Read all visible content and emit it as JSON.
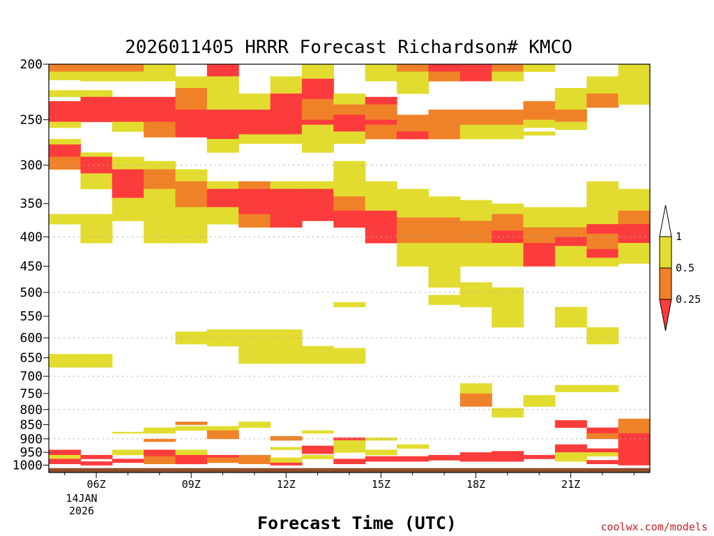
{
  "chart_data": {
    "type": "heatmap",
    "title": "2026011405 HRRR Forecast Richardson# KMCO",
    "xlabel": "Forecast Time (UTC)",
    "ylabel": "",
    "credit": "coolwx.com/models",
    "x_range_hours": [
      4.5,
      23.5
    ],
    "y_scale": "log",
    "y_range_hPa": [
      1030,
      200
    ],
    "y_ticks": [
      200,
      250,
      300,
      350,
      400,
      450,
      500,
      550,
      600,
      650,
      700,
      750,
      800,
      850,
      900,
      950,
      1000
    ],
    "y_gridlines": [
      300,
      400,
      500,
      600,
      700,
      800,
      900
    ],
    "x_ticks": [
      {
        "hour": 6,
        "label": "06Z"
      },
      {
        "hour": 9,
        "label": "09Z"
      },
      {
        "hour": 12,
        "label": "12Z"
      },
      {
        "hour": 15,
        "label": "15Z"
      },
      {
        "hour": 18,
        "label": "18Z"
      },
      {
        "hour": 21,
        "label": "21Z"
      }
    ],
    "date_label": [
      "14JAN",
      "2026"
    ],
    "legend": {
      "placement": "right",
      "labels": [
        "1",
        "0.5",
        "0.25"
      ],
      "bins": [
        {
          "name": "0.5-1",
          "color": "#e3dc30"
        },
        {
          "name": "0.25-0.5",
          "color": "#ef8228"
        },
        {
          "name": "<0.25",
          "color": "#fc3c3c"
        }
      ]
    },
    "colors": {
      "yellow": "#e3dc30",
      "orange": "#ef8228",
      "red": "#fc3c3c",
      "ground": "#8f4f2a",
      "grid": "#aaaaaa"
    },
    "ground_top_hPa": 1012,
    "cells": [
      [
        5,
        200,
        206,
        "O"
      ],
      [
        5,
        206,
        213,
        "Y"
      ],
      [
        5,
        222,
        228,
        "Y"
      ],
      [
        5,
        232,
        252,
        "R"
      ],
      [
        5,
        252,
        258,
        "Y"
      ],
      [
        5,
        270,
        276,
        "Y"
      ],
      [
        5,
        276,
        290,
        "R"
      ],
      [
        5,
        290,
        305,
        "O"
      ],
      [
        5,
        365,
        380,
        "Y"
      ],
      [
        5,
        640,
        675,
        "Y"
      ],
      [
        5,
        940,
        960,
        "R"
      ],
      [
        5,
        960,
        975,
        "Y"
      ],
      [
        5,
        975,
        995,
        "R"
      ],
      [
        6,
        200,
        206,
        "O"
      ],
      [
        6,
        206,
        214,
        "Y"
      ],
      [
        6,
        222,
        228,
        "Y"
      ],
      [
        6,
        228,
        252,
        "R"
      ],
      [
        6,
        285,
        290,
        "Y"
      ],
      [
        6,
        290,
        310,
        "R"
      ],
      [
        6,
        310,
        330,
        "Y"
      ],
      [
        6,
        365,
        410,
        "Y"
      ],
      [
        6,
        640,
        675,
        "Y"
      ],
      [
        6,
        960,
        975,
        "R"
      ],
      [
        6,
        985,
        1000,
        "R"
      ],
      [
        7,
        200,
        206,
        "O"
      ],
      [
        7,
        206,
        214,
        "Y"
      ],
      [
        7,
        228,
        252,
        "R"
      ],
      [
        7,
        252,
        262,
        "Y"
      ],
      [
        7,
        290,
        305,
        "Y"
      ],
      [
        7,
        305,
        342,
        "R"
      ],
      [
        7,
        342,
        375,
        "Y"
      ],
      [
        7,
        875,
        880,
        "Y"
      ],
      [
        7,
        940,
        960,
        "Y"
      ],
      [
        7,
        975,
        990,
        "R"
      ],
      [
        8,
        200,
        214,
        "Y"
      ],
      [
        8,
        228,
        252,
        "R"
      ],
      [
        8,
        252,
        268,
        "O"
      ],
      [
        8,
        295,
        305,
        "Y"
      ],
      [
        8,
        305,
        330,
        "O"
      ],
      [
        8,
        330,
        410,
        "Y"
      ],
      [
        8,
        860,
        880,
        "Y"
      ],
      [
        8,
        900,
        910,
        "O"
      ],
      [
        8,
        940,
        965,
        "R"
      ],
      [
        8,
        965,
        995,
        "O"
      ],
      [
        9,
        210,
        220,
        "Y"
      ],
      [
        9,
        220,
        240,
        "O"
      ],
      [
        9,
        240,
        268,
        "R"
      ],
      [
        9,
        305,
        320,
        "Y"
      ],
      [
        9,
        320,
        355,
        "O"
      ],
      [
        9,
        355,
        410,
        "Y"
      ],
      [
        9,
        585,
        615,
        "Y"
      ],
      [
        9,
        840,
        850,
        "O"
      ],
      [
        9,
        855,
        870,
        "Y"
      ],
      [
        9,
        940,
        960,
        "Y"
      ],
      [
        9,
        960,
        995,
        "R"
      ],
      [
        10,
        200,
        210,
        "R"
      ],
      [
        10,
        210,
        240,
        "Y"
      ],
      [
        10,
        240,
        270,
        "R"
      ],
      [
        10,
        270,
        285,
        "Y"
      ],
      [
        10,
        320,
        330,
        "Y"
      ],
      [
        10,
        330,
        355,
        "R"
      ],
      [
        10,
        355,
        380,
        "Y"
      ],
      [
        10,
        580,
        620,
        "Y"
      ],
      [
        10,
        855,
        870,
        "Y"
      ],
      [
        10,
        870,
        900,
        "O"
      ],
      [
        10,
        960,
        970,
        "R"
      ],
      [
        10,
        970,
        990,
        "O"
      ],
      [
        11,
        225,
        240,
        "Y"
      ],
      [
        11,
        240,
        265,
        "R"
      ],
      [
        11,
        265,
        275,
        "Y"
      ],
      [
        11,
        320,
        330,
        "O"
      ],
      [
        11,
        330,
        365,
        "R"
      ],
      [
        11,
        365,
        385,
        "O"
      ],
      [
        11,
        580,
        665,
        "Y"
      ],
      [
        11,
        840,
        860,
        "Y"
      ],
      [
        11,
        960,
        975,
        "O"
      ],
      [
        11,
        975,
        995,
        "O"
      ],
      [
        12,
        210,
        225,
        "Y"
      ],
      [
        12,
        225,
        265,
        "R"
      ],
      [
        12,
        265,
        275,
        "Y"
      ],
      [
        12,
        320,
        330,
        "Y"
      ],
      [
        12,
        330,
        385,
        "R"
      ],
      [
        12,
        580,
        665,
        "Y"
      ],
      [
        12,
        890,
        905,
        "O"
      ],
      [
        12,
        930,
        940,
        "Y"
      ],
      [
        12,
        970,
        990,
        "Y"
      ],
      [
        12,
        990,
        1000,
        "R"
      ],
      [
        13,
        200,
        212,
        "Y"
      ],
      [
        13,
        212,
        230,
        "R"
      ],
      [
        13,
        230,
        250,
        "O"
      ],
      [
        13,
        250,
        255,
        "R"
      ],
      [
        13,
        255,
        285,
        "Y"
      ],
      [
        13,
        320,
        330,
        "Y"
      ],
      [
        13,
        330,
        375,
        "R"
      ],
      [
        13,
        620,
        665,
        "Y"
      ],
      [
        13,
        870,
        880,
        "Y"
      ],
      [
        13,
        925,
        955,
        "R"
      ],
      [
        13,
        960,
        975,
        "Y"
      ],
      [
        14,
        225,
        235,
        "Y"
      ],
      [
        14,
        235,
        245,
        "O"
      ],
      [
        14,
        245,
        262,
        "R"
      ],
      [
        14,
        262,
        275,
        "Y"
      ],
      [
        14,
        295,
        320,
        "Y"
      ],
      [
        14,
        320,
        340,
        "Y"
      ],
      [
        14,
        340,
        360,
        "O"
      ],
      [
        14,
        360,
        385,
        "R"
      ],
      [
        14,
        520,
        530,
        "Y"
      ],
      [
        14,
        625,
        665,
        "Y"
      ],
      [
        14,
        895,
        905,
        "R"
      ],
      [
        14,
        905,
        920,
        "Y"
      ],
      [
        14,
        920,
        950,
        "Y"
      ],
      [
        14,
        975,
        995,
        "R"
      ],
      [
        15,
        200,
        214,
        "Y"
      ],
      [
        15,
        228,
        235,
        "R"
      ],
      [
        15,
        235,
        250,
        "O"
      ],
      [
        15,
        250,
        255,
        "R"
      ],
      [
        15,
        255,
        270,
        "O"
      ],
      [
        15,
        320,
        360,
        "Y"
      ],
      [
        15,
        360,
        410,
        "R"
      ],
      [
        15,
        895,
        905,
        "Y"
      ],
      [
        15,
        940,
        960,
        "Y"
      ],
      [
        15,
        965,
        985,
        "R"
      ],
      [
        16,
        200,
        206,
        "O"
      ],
      [
        16,
        206,
        225,
        "Y"
      ],
      [
        16,
        245,
        262,
        "O"
      ],
      [
        16,
        262,
        270,
        "R"
      ],
      [
        16,
        330,
        370,
        "Y"
      ],
      [
        16,
        370,
        410,
        "O"
      ],
      [
        16,
        410,
        450,
        "Y"
      ],
      [
        16,
        920,
        935,
        "Y"
      ],
      [
        16,
        965,
        985,
        "R"
      ],
      [
        17,
        200,
        206,
        "R"
      ],
      [
        17,
        206,
        214,
        "O"
      ],
      [
        17,
        240,
        270,
        "O"
      ],
      [
        17,
        340,
        370,
        "Y"
      ],
      [
        17,
        370,
        410,
        "O"
      ],
      [
        17,
        410,
        490,
        "Y"
      ],
      [
        17,
        505,
        525,
        "Y"
      ],
      [
        17,
        960,
        980,
        "R"
      ],
      [
        18,
        200,
        214,
        "R"
      ],
      [
        18,
        240,
        255,
        "O"
      ],
      [
        18,
        255,
        270,
        "Y"
      ],
      [
        18,
        345,
        375,
        "Y"
      ],
      [
        18,
        375,
        410,
        "O"
      ],
      [
        18,
        410,
        450,
        "Y"
      ],
      [
        18,
        480,
        530,
        "Y"
      ],
      [
        18,
        720,
        750,
        "Y"
      ],
      [
        18,
        750,
        790,
        "O"
      ],
      [
        18,
        950,
        985,
        "R"
      ],
      [
        19,
        200,
        206,
        "O"
      ],
      [
        19,
        206,
        214,
        "Y"
      ],
      [
        19,
        240,
        255,
        "O"
      ],
      [
        19,
        255,
        270,
        "Y"
      ],
      [
        19,
        350,
        365,
        "Y"
      ],
      [
        19,
        365,
        390,
        "O"
      ],
      [
        19,
        390,
        410,
        "R"
      ],
      [
        19,
        410,
        450,
        "Y"
      ],
      [
        19,
        490,
        575,
        "Y"
      ],
      [
        19,
        795,
        825,
        "Y"
      ],
      [
        19,
        945,
        985,
        "R"
      ],
      [
        20,
        200,
        206,
        "Y"
      ],
      [
        20,
        232,
        250,
        "O"
      ],
      [
        20,
        250,
        258,
        "Y"
      ],
      [
        20,
        262,
        266,
        "Y"
      ],
      [
        20,
        355,
        385,
        "Y"
      ],
      [
        20,
        385,
        410,
        "O"
      ],
      [
        20,
        410,
        450,
        "R"
      ],
      [
        20,
        755,
        790,
        "Y"
      ],
      [
        20,
        960,
        975,
        "R"
      ],
      [
        21,
        220,
        240,
        "Y"
      ],
      [
        21,
        240,
        252,
        "O"
      ],
      [
        21,
        252,
        260,
        "Y"
      ],
      [
        21,
        355,
        385,
        "Y"
      ],
      [
        21,
        385,
        400,
        "O"
      ],
      [
        21,
        400,
        415,
        "R"
      ],
      [
        21,
        415,
        450,
        "Y"
      ],
      [
        21,
        530,
        575,
        "Y"
      ],
      [
        21,
        725,
        745,
        "Y"
      ],
      [
        21,
        835,
        860,
        "R"
      ],
      [
        21,
        920,
        950,
        "R"
      ],
      [
        21,
        950,
        985,
        "Y"
      ],
      [
        22,
        210,
        225,
        "Y"
      ],
      [
        22,
        225,
        238,
        "O"
      ],
      [
        22,
        320,
        355,
        "Y"
      ],
      [
        22,
        355,
        380,
        "Y"
      ],
      [
        22,
        380,
        395,
        "R"
      ],
      [
        22,
        395,
        420,
        "O"
      ],
      [
        22,
        420,
        435,
        "R"
      ],
      [
        22,
        435,
        450,
        "Y"
      ],
      [
        22,
        575,
        615,
        "Y"
      ],
      [
        22,
        725,
        745,
        "Y"
      ],
      [
        22,
        860,
        880,
        "R"
      ],
      [
        22,
        880,
        900,
        "O"
      ],
      [
        22,
        935,
        950,
        "R"
      ],
      [
        22,
        950,
        965,
        "Y"
      ],
      [
        22,
        980,
        995,
        "R"
      ],
      [
        23,
        200,
        235,
        "Y"
      ],
      [
        23,
        330,
        360,
        "Y"
      ],
      [
        23,
        360,
        380,
        "O"
      ],
      [
        23,
        380,
        410,
        "R"
      ],
      [
        23,
        410,
        445,
        "Y"
      ],
      [
        23,
        830,
        880,
        "O"
      ],
      [
        23,
        880,
        1000,
        "R"
      ]
    ]
  }
}
